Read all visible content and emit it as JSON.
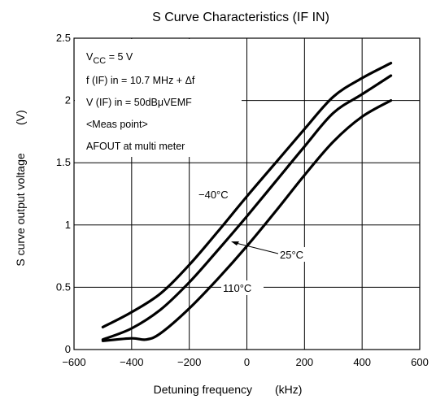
{
  "chart_data": {
    "type": "line",
    "title": "S Curve Characteristics (IF IN)",
    "xlabel": "Detuning frequency",
    "xunit": "(kHz)",
    "ylabel": "S curve output voltage",
    "yunit": "(V)",
    "xlim": [
      -600,
      600
    ],
    "ylim": [
      0,
      2.5
    ],
    "xticks": [
      "−600",
      "−400",
      "−200",
      "0",
      "200",
      "400",
      "600"
    ],
    "yticks": [
      "0",
      "0.5",
      "1",
      "1.5",
      "2",
      "2.5"
    ],
    "grid": true,
    "conditions": {
      "vcc_main": "V",
      "vcc_sub": "CC",
      "vcc_rest": " = 5 V",
      "freq": "f (IF) in = 10.7 MHz + Δf",
      "level": "V (IF) in = 50dBμVEMF",
      "meas": "<Meas point>",
      "afout": "AFOUT at multi meter"
    },
    "series": [
      {
        "name": "−40°C",
        "x": [
          -500,
          -400,
          -300,
          -200,
          -100,
          0,
          100,
          200,
          300,
          400,
          500
        ],
        "y": [
          0.18,
          0.3,
          0.45,
          0.68,
          0.95,
          1.23,
          1.5,
          1.77,
          2.03,
          2.18,
          2.3
        ]
      },
      {
        "name": "25°C",
        "x": [
          -500,
          -400,
          -300,
          -200,
          -100,
          0,
          100,
          200,
          300,
          400,
          500
        ],
        "y": [
          0.08,
          0.17,
          0.32,
          0.54,
          0.8,
          1.07,
          1.35,
          1.63,
          1.9,
          2.05,
          2.2
        ]
      },
      {
        "name": "110°C",
        "x": [
          -500,
          -400,
          -350,
          -300,
          -200,
          -100,
          0,
          100,
          200,
          300,
          400,
          500
        ],
        "y": [
          0.07,
          0.09,
          0.08,
          0.13,
          0.33,
          0.57,
          0.83,
          1.11,
          1.4,
          1.67,
          1.87,
          2.0
        ]
      }
    ]
  }
}
